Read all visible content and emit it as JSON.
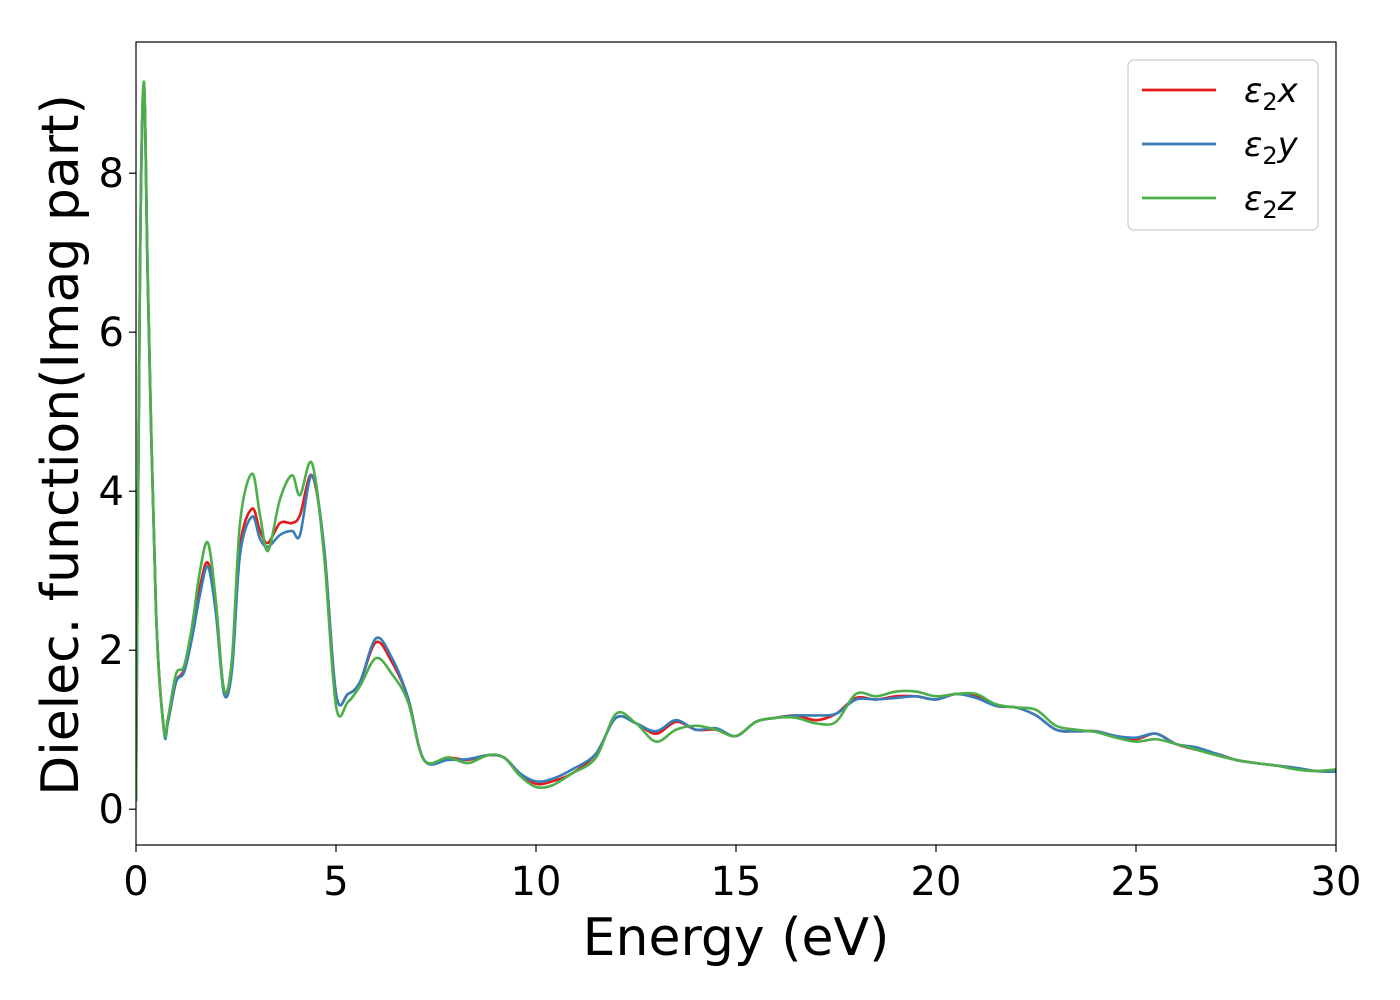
{
  "chart_data": {
    "type": "line",
    "xlabel": "Energy (eV)",
    "ylabel": "Dielec. function(Imag part)",
    "xlim": [
      0,
      30
    ],
    "ylim": [
      -0.45,
      9.65
    ],
    "xticks": [
      0,
      5,
      10,
      15,
      20,
      25,
      30
    ],
    "yticks": [
      0,
      2,
      4,
      6,
      8
    ],
    "grid": false,
    "legend_position": "top-right",
    "x": [
      0,
      0.1,
      0.2,
      0.3,
      0.5,
      0.7,
      0.8,
      1.0,
      1.2,
      1.4,
      1.6,
      1.8,
      2.0,
      2.2,
      2.4,
      2.6,
      2.9,
      3.1,
      3.3,
      3.6,
      3.9,
      4.1,
      4.4,
      4.7,
      5.0,
      5.3,
      5.6,
      6.0,
      6.4,
      6.8,
      7.2,
      7.8,
      8.3,
      8.8,
      9.2,
      9.6,
      10.0,
      10.4,
      10.9,
      11.5,
      12.0,
      12.5,
      13.0,
      13.5,
      14.0,
      14.5,
      15.0,
      15.5,
      16.0,
      16.5,
      17.0,
      17.5,
      18.0,
      18.5,
      19.0,
      19.5,
      20.0,
      20.5,
      21.0,
      21.5,
      22.0,
      22.5,
      23.0,
      23.5,
      24.0,
      24.5,
      25.0,
      25.5,
      26.0,
      26.5,
      27.0,
      27.5,
      28.0,
      28.5,
      29.0,
      29.5,
      30.0
    ],
    "series": [
      {
        "name": "ε2x",
        "color": "#e41a1c",
        "values": [
          0.1,
          6.8,
          9.1,
          6.5,
          2.5,
          1.0,
          1.1,
          1.6,
          1.75,
          2.2,
          2.8,
          3.1,
          2.5,
          1.5,
          1.8,
          3.3,
          3.78,
          3.5,
          3.35,
          3.6,
          3.6,
          3.7,
          4.2,
          3.3,
          1.45,
          1.45,
          1.6,
          2.1,
          1.85,
          1.4,
          0.62,
          0.65,
          0.62,
          0.68,
          0.65,
          0.45,
          0.32,
          0.35,
          0.45,
          0.7,
          1.15,
          1.08,
          0.95,
          1.1,
          1.0,
          1.0,
          0.92,
          1.1,
          1.15,
          1.18,
          1.12,
          1.2,
          1.4,
          1.38,
          1.42,
          1.42,
          1.38,
          1.45,
          1.42,
          1.3,
          1.28,
          1.18,
          1.0,
          0.98,
          0.98,
          0.92,
          0.88,
          0.95,
          0.82,
          0.75,
          0.7,
          0.62,
          0.58,
          0.55,
          0.52,
          0.48,
          0.48
        ]
      },
      {
        "name": "ε2y",
        "color": "#377eb8",
        "values": [
          0.1,
          6.8,
          9.1,
          6.5,
          2.5,
          0.98,
          1.1,
          1.6,
          1.72,
          2.15,
          2.7,
          3.05,
          2.45,
          1.45,
          1.75,
          3.2,
          3.68,
          3.4,
          3.3,
          3.45,
          3.5,
          3.45,
          4.2,
          3.3,
          1.45,
          1.45,
          1.6,
          2.15,
          1.9,
          1.4,
          0.62,
          0.62,
          0.63,
          0.68,
          0.65,
          0.45,
          0.35,
          0.38,
          0.5,
          0.7,
          1.15,
          1.08,
          0.98,
          1.12,
          1.0,
          1.02,
          0.92,
          1.1,
          1.15,
          1.18,
          1.18,
          1.2,
          1.38,
          1.38,
          1.4,
          1.42,
          1.38,
          1.45,
          1.4,
          1.3,
          1.28,
          1.18,
          1.0,
          0.98,
          0.98,
          0.92,
          0.9,
          0.95,
          0.82,
          0.78,
          0.7,
          0.62,
          0.58,
          0.55,
          0.52,
          0.48,
          0.47
        ]
      },
      {
        "name": "ε2z",
        "color": "#4daf4a",
        "values": [
          0.1,
          6.9,
          9.15,
          6.6,
          2.5,
          1.0,
          1.15,
          1.7,
          1.8,
          2.3,
          3.0,
          3.35,
          2.6,
          1.5,
          1.9,
          3.6,
          4.22,
          3.7,
          3.25,
          3.9,
          4.2,
          3.95,
          4.35,
          3.2,
          1.3,
          1.35,
          1.55,
          1.9,
          1.7,
          1.35,
          0.62,
          0.65,
          0.58,
          0.68,
          0.65,
          0.42,
          0.28,
          0.3,
          0.45,
          0.65,
          1.2,
          1.08,
          0.85,
          1.0,
          1.05,
          1.0,
          0.92,
          1.1,
          1.15,
          1.15,
          1.08,
          1.1,
          1.45,
          1.42,
          1.48,
          1.48,
          1.42,
          1.45,
          1.45,
          1.32,
          1.28,
          1.25,
          1.05,
          1.0,
          0.97,
          0.9,
          0.85,
          0.88,
          0.82,
          0.75,
          0.68,
          0.62,
          0.58,
          0.55,
          0.5,
          0.48,
          0.5
        ]
      }
    ]
  }
}
